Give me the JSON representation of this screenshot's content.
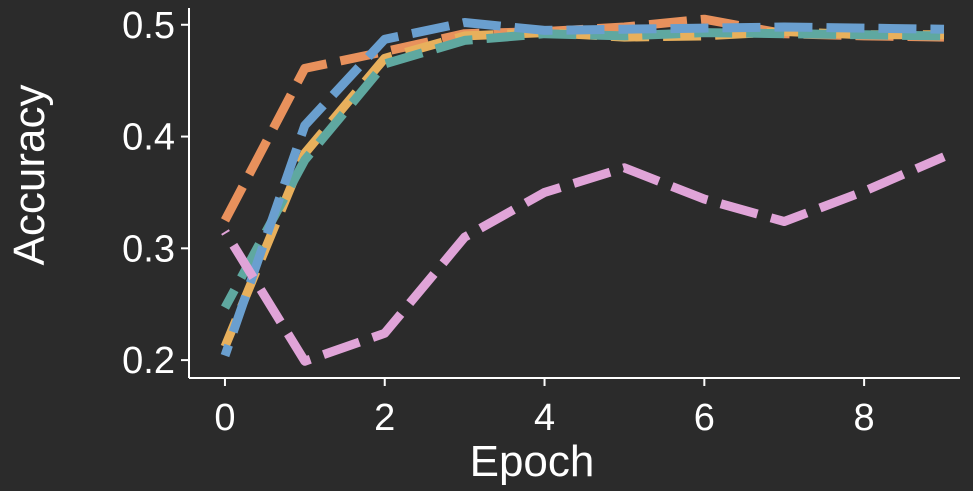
{
  "chart_data": {
    "type": "line",
    "xlabel": "Epoch",
    "ylabel": "Accuracy",
    "xlim": [
      -0.45,
      9.2
    ],
    "ylim": [
      0.184,
      0.515
    ],
    "x_ticks": [
      0,
      2,
      4,
      6,
      8
    ],
    "y_ticks": [
      0.2,
      0.3,
      0.4,
      0.5
    ],
    "y_tick_labels": [
      "0.2",
      "0.3",
      "0.4",
      "0.5"
    ],
    "grid": false,
    "legend": "none",
    "x": [
      0,
      1,
      2,
      3,
      4,
      5,
      6,
      7,
      8,
      9
    ],
    "series": [
      {
        "color": "#e8915c",
        "values": [
          0.325,
          0.461,
          0.476,
          0.492,
          0.494,
          0.498,
          0.505,
          0.492,
          0.49,
          0.489
        ]
      },
      {
        "color": "#e8b05c",
        "values": [
          0.212,
          0.385,
          0.47,
          0.49,
          0.493,
          0.489,
          0.49,
          0.494,
          0.491,
          0.491
        ]
      },
      {
        "color": "#5fa8a0",
        "values": [
          0.247,
          0.379,
          0.465,
          0.486,
          0.492,
          0.49,
          0.493,
          0.492,
          0.491,
          0.49
        ]
      },
      {
        "color": "#6a9fcf",
        "values": [
          0.204,
          0.41,
          0.487,
          0.502,
          0.495,
          0.496,
          0.497,
          0.498,
          0.497,
          0.496
        ]
      },
      {
        "color": "#e0a4d8",
        "values": [
          0.315,
          0.199,
          0.224,
          0.31,
          0.35,
          0.372,
          0.344,
          0.324,
          0.351,
          0.382
        ]
      }
    ]
  }
}
